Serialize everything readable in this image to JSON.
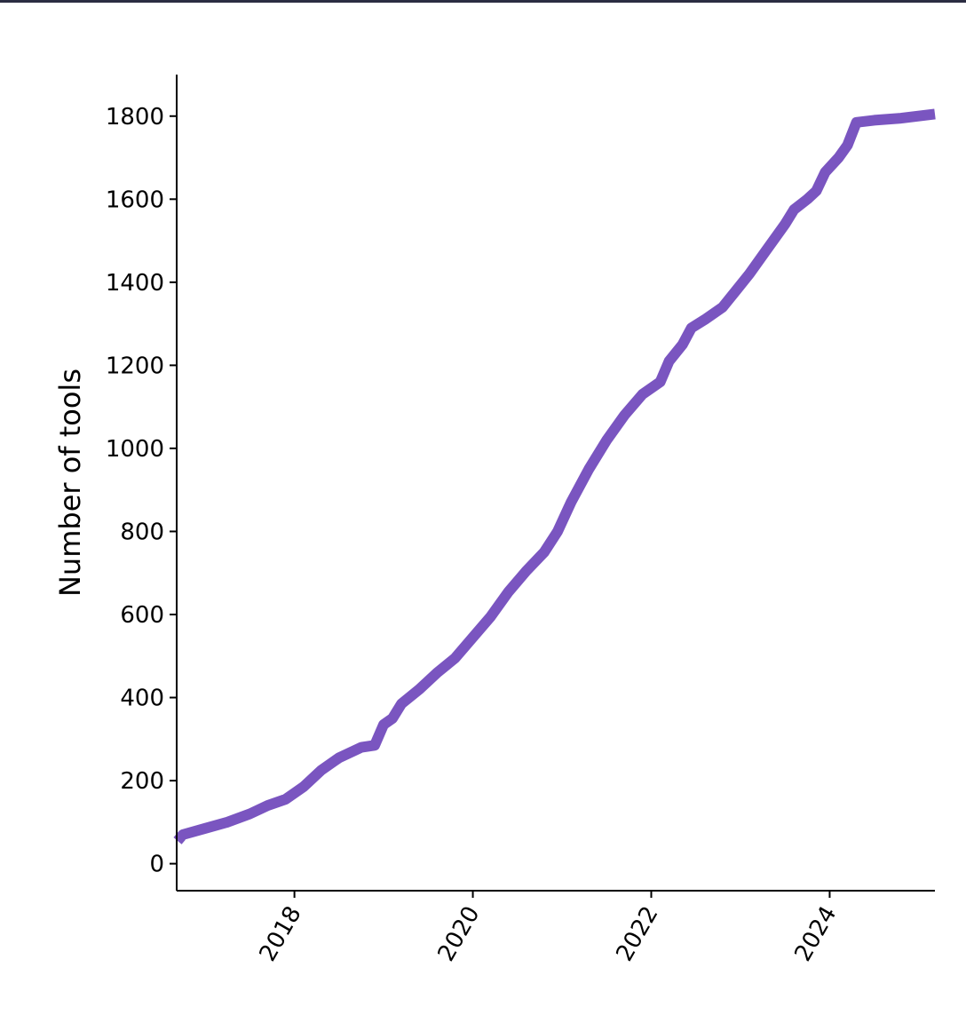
{
  "top_bar_color": "#2b2d42",
  "chart_data": {
    "type": "line",
    "title": "",
    "xlabel": "",
    "ylabel": "Number of tools",
    "xlim": [
      2016.68,
      2025.18
    ],
    "ylim": [
      -65,
      1900
    ],
    "x_ticks": [
      2018,
      2020,
      2022,
      2024
    ],
    "y_ticks": [
      0,
      200,
      400,
      600,
      800,
      1000,
      1200,
      1400,
      1600,
      1800
    ],
    "grid": false,
    "legend": "none",
    "series": [
      {
        "color": "#7a55c0",
        "x": [
          2016.69,
          2016.75,
          2017.0,
          2017.25,
          2017.5,
          2017.7,
          2017.9,
          2018.1,
          2018.3,
          2018.5,
          2018.75,
          2018.9,
          2019.0,
          2019.1,
          2019.2,
          2019.4,
          2019.6,
          2019.8,
          2020.0,
          2020.2,
          2020.4,
          2020.6,
          2020.8,
          2020.95,
          2021.1,
          2021.3,
          2021.5,
          2021.7,
          2021.9,
          2022.1,
          2022.2,
          2022.35,
          2022.45,
          2022.6,
          2022.8,
          2022.95,
          2023.1,
          2023.3,
          2023.5,
          2023.6,
          2023.75,
          2023.85,
          2023.95,
          2024.1,
          2024.2,
          2024.3,
          2024.5,
          2024.8,
          2025.18
        ],
        "y": [
          55,
          70,
          85,
          100,
          120,
          140,
          155,
          185,
          225,
          255,
          280,
          285,
          335,
          350,
          385,
          420,
          460,
          495,
          545,
          595,
          655,
          705,
          750,
          800,
          870,
          950,
          1020,
          1080,
          1130,
          1160,
          1210,
          1250,
          1290,
          1310,
          1340,
          1380,
          1420,
          1480,
          1540,
          1575,
          1600,
          1620,
          1665,
          1700,
          1730,
          1785,
          1790,
          1795,
          1805
        ]
      }
    ]
  }
}
